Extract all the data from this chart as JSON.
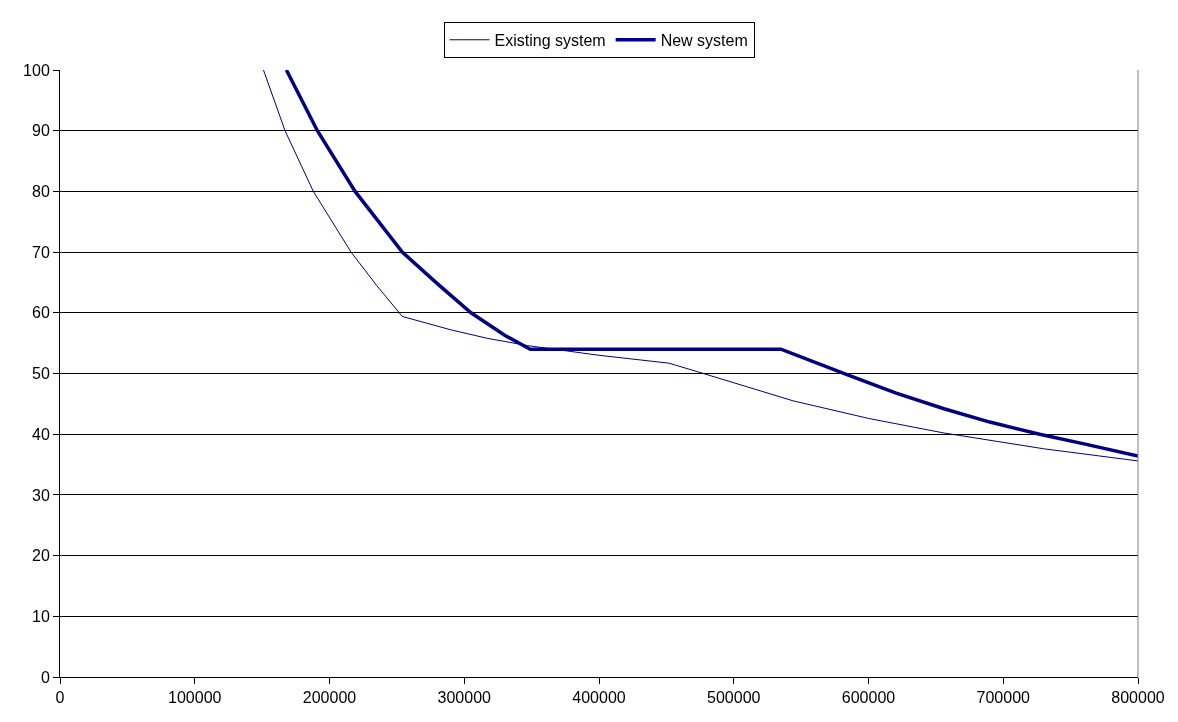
{
  "chart_data": {
    "type": "line",
    "series": [
      {
        "name": "Existing system",
        "color": "#000080",
        "x": [
          151000,
          167000,
          188000,
          216000,
          235000,
          254000,
          290000,
          317000,
          347000,
          400000,
          452000,
          473000,
          510000,
          544000,
          600000,
          656000,
          730000,
          800000
        ],
        "values": [
          100,
          90,
          80,
          70,
          64.5,
          59.4,
          57.2,
          55.8,
          54.6,
          53.0,
          51.7,
          50.3,
          47.8,
          45.5,
          42.6,
          40.2,
          37.6,
          35.6
        ]
      },
      {
        "name": "New system",
        "color": "#000080",
        "x": [
          168000,
          191000,
          219000,
          254000,
          280000,
          305000,
          330000,
          349000,
          535000,
          584000,
          620000,
          656000,
          690000,
          727000,
          760000,
          800000
        ],
        "values": [
          100,
          90,
          80,
          70,
          64.8,
          60,
          56.3,
          54,
          54,
          49.8,
          46.8,
          44.2,
          42.0,
          40.0,
          38.4,
          36.4
        ]
      }
    ],
    "xlim": [
      0,
      800000
    ],
    "xticks": [
      0,
      100000,
      200000,
      300000,
      400000,
      500000,
      600000,
      700000,
      800000
    ],
    "ylim": [
      0,
      100
    ],
    "yticks": [
      0,
      10,
      20,
      30,
      40,
      50,
      60,
      70,
      80,
      90,
      100
    ],
    "grid": "y",
    "legend": "top",
    "marker": "none",
    "line_style": "solid"
  }
}
